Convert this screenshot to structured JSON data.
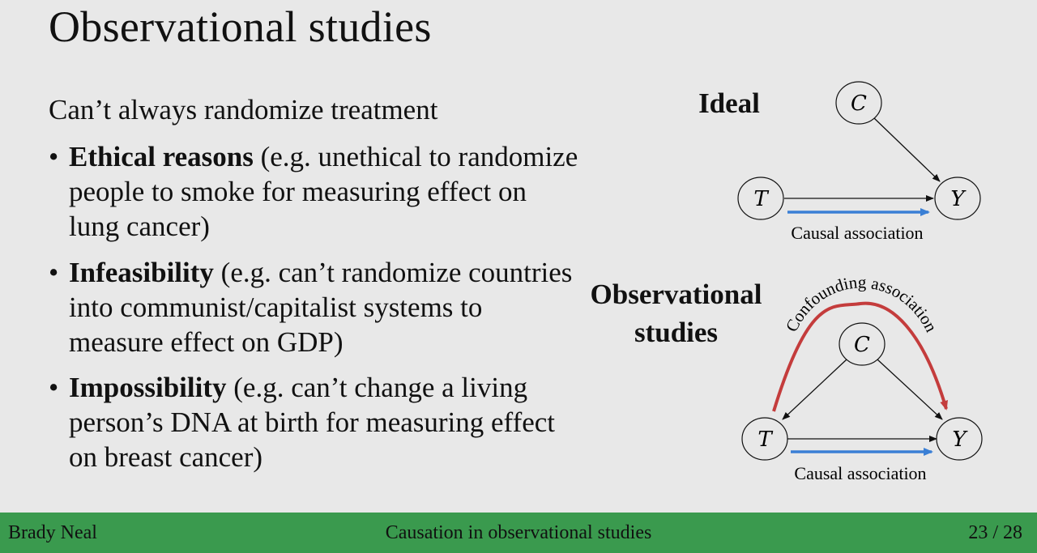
{
  "slide": {
    "title": "Observational studies",
    "intro": "Can’t always randomize treatment"
  },
  "bullets": [
    {
      "bold": "Ethical reasons",
      "text": " (e.g. unethical to randomize people to smoke for measuring effect on lung cancer)"
    },
    {
      "bold": "Infeasibility",
      "text": " (e.g. can’t randomize countries into communist/capitalist systems to measure effect on GDP)"
    },
    {
      "bold": "Impossibility",
      "text": " (e.g. can’t change a living person’s DNA at birth for measuring effect on breast cancer)"
    }
  ],
  "bullet_glyph": "•",
  "diagrams": {
    "ideal": {
      "label": "Ideal",
      "nodes": {
        "treatment": "T",
        "confounder": "C",
        "outcome": "Y"
      },
      "causal_label": "Causal association"
    },
    "observational": {
      "label_line1": "Observational",
      "label_line2": "studies",
      "nodes": {
        "treatment": "T",
        "confounder": "C",
        "outcome": "Y"
      },
      "causal_label": "Causal association",
      "confounding_label": "Confounding association"
    }
  },
  "colors": {
    "background": "#e8e8e8",
    "footer": "#3a9a4e",
    "causal_arrow": "#3a7fd5",
    "confounding_arrow": "#c43c3c"
  },
  "footer": {
    "author": "Brady Neal",
    "title": "Causation in observational studies",
    "page": "23 / 28"
  }
}
